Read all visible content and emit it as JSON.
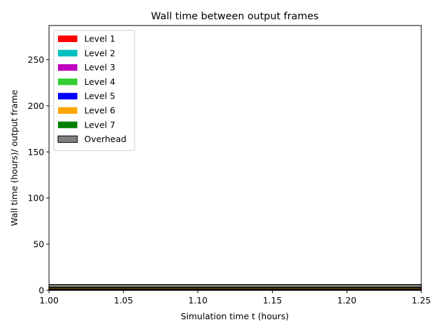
{
  "chart_data": {
    "type": "area",
    "title": "Wall time between output frames",
    "xlabel": "Simulation time t (hours)",
    "ylabel": "Wall time (hours)/ output frame",
    "xlim": [
      1.0,
      1.25
    ],
    "ylim": [
      0,
      287
    ],
    "xticks": [
      "1.00",
      "1.05",
      "1.10",
      "1.15",
      "1.20",
      "1.25"
    ],
    "yticks": [
      "0",
      "50",
      "100",
      "150",
      "200",
      "250"
    ],
    "grid": false,
    "legend_position": "top-left",
    "x": [
      1.0,
      1.25
    ],
    "series": [
      {
        "name": "Level 1",
        "color": "#ff0000",
        "values": [
          0.3,
          0.3
        ]
      },
      {
        "name": "Level 2",
        "color": "#00bfbf",
        "values": [
          0.3,
          0.3
        ]
      },
      {
        "name": "Level 3",
        "color": "#bf00bf",
        "values": [
          0.3,
          0.3
        ]
      },
      {
        "name": "Level 4",
        "color": "#33cc33",
        "values": [
          0.3,
          0.3
        ]
      },
      {
        "name": "Level 5",
        "color": "#0000ff",
        "values": [
          0.3,
          0.3
        ]
      },
      {
        "name": "Level 6",
        "color": "#ffa500",
        "values": [
          1.5,
          1.5
        ]
      },
      {
        "name": "Level 7",
        "color": "#008000",
        "values": [
          0.3,
          0.3
        ]
      },
      {
        "name": "Overhead",
        "color": "#808080",
        "values": [
          3.0,
          3.0
        ]
      }
    ]
  }
}
